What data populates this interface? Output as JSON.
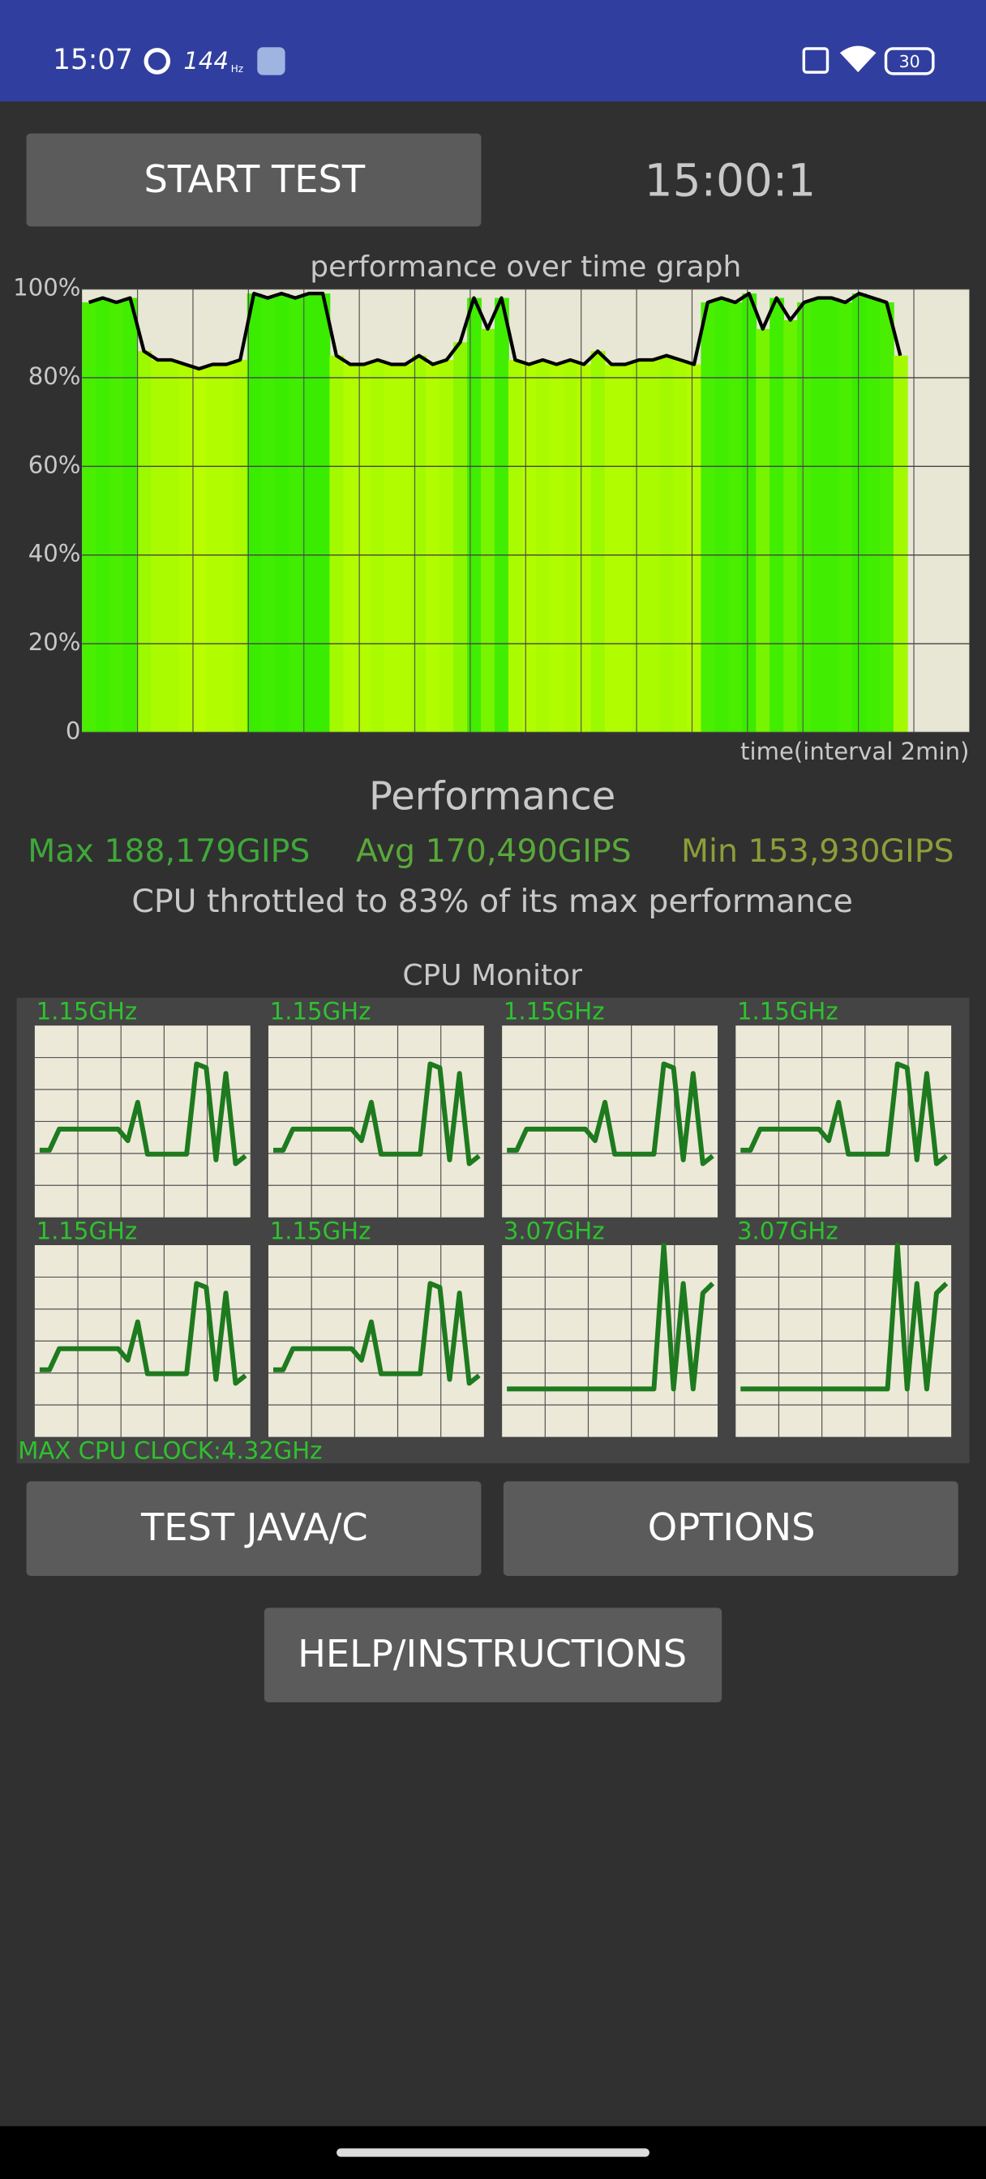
{
  "status_bar": {
    "time": "15:07",
    "refresh_rate": "144",
    "refresh_unit": "Hz",
    "battery": "30"
  },
  "buttons": {
    "start": "START TEST",
    "test_java": "TEST JAVA/C",
    "options": "OPTIONS",
    "help": "HELP/INSTRUCTIONS"
  },
  "timer": "15:00:1",
  "performance": {
    "heading": "Performance",
    "max": "Max 188,179GIPS",
    "avg": "Avg 170,490GIPS",
    "min": "Min 153,930GIPS",
    "summary": "CPU throttled to 83% of its max performance"
  },
  "cpu_monitor": {
    "title": "CPU Monitor",
    "max_clock": "MAX CPU CLOCK:4.32GHz"
  },
  "chart_data": [
    {
      "type": "line",
      "title": "performance over time graph",
      "x_label": "time(interval 2min)",
      "color": "#000000",
      "grid": true,
      "ylim": [
        0,
        100
      ],
      "yticks": [
        0,
        {
          "value": 20,
          "label": "20%"
        },
        {
          "value": 40,
          "label": "40%"
        },
        {
          "value": 60,
          "label": "60%"
        },
        {
          "value": 80,
          "label": "80%"
        },
        {
          "value": 100,
          "label": "100%"
        }
      ],
      "values": [
        97,
        98,
        97,
        98,
        86,
        84,
        84,
        83,
        82,
        83,
        83,
        84,
        99,
        98,
        99,
        98,
        99,
        99,
        85,
        83,
        83,
        84,
        83,
        83,
        85,
        83,
        84,
        88,
        98,
        91,
        98,
        84,
        83,
        84,
        83,
        84,
        83,
        86,
        83,
        83,
        84,
        84,
        85,
        84,
        83,
        97,
        98,
        97,
        99,
        91,
        98,
        93,
        97,
        98,
        98,
        97,
        99,
        98,
        97,
        85
      ]
    },
    {
      "type": "line",
      "title": "1.15GHz",
      "color": "#1e7a1e",
      "ylim": [
        0,
        100
      ],
      "values": [
        35,
        35,
        46,
        46,
        46,
        46,
        46,
        46,
        46,
        40,
        60,
        33,
        33,
        33,
        33,
        33,
        80,
        78,
        30,
        75,
        28,
        32
      ]
    },
    {
      "type": "line",
      "title": "1.15GHz",
      "color": "#1e7a1e",
      "ylim": [
        0,
        100
      ],
      "values": [
        35,
        35,
        46,
        46,
        46,
        46,
        46,
        46,
        46,
        40,
        60,
        33,
        33,
        33,
        33,
        33,
        80,
        78,
        30,
        75,
        28,
        32
      ]
    },
    {
      "type": "line",
      "title": "1.15GHz",
      "color": "#1e7a1e",
      "ylim": [
        0,
        100
      ],
      "values": [
        35,
        35,
        46,
        46,
        46,
        46,
        46,
        46,
        46,
        40,
        60,
        33,
        33,
        33,
        33,
        33,
        80,
        78,
        30,
        75,
        28,
        32
      ]
    },
    {
      "type": "line",
      "title": "1.15GHz",
      "color": "#1e7a1e",
      "ylim": [
        0,
        100
      ],
      "values": [
        35,
        35,
        46,
        46,
        46,
        46,
        46,
        46,
        46,
        40,
        60,
        33,
        33,
        33,
        33,
        33,
        80,
        78,
        30,
        75,
        28,
        32
      ]
    },
    {
      "type": "line",
      "title": "1.15GHz",
      "color": "#1e7a1e",
      "ylim": [
        0,
        100
      ],
      "values": [
        35,
        35,
        46,
        46,
        46,
        46,
        46,
        46,
        46,
        40,
        60,
        33,
        33,
        33,
        33,
        33,
        80,
        78,
        30,
        75,
        28,
        32
      ]
    },
    {
      "type": "line",
      "title": "1.15GHz",
      "color": "#1e7a1e",
      "ylim": [
        0,
        100
      ],
      "values": [
        35,
        35,
        46,
        46,
        46,
        46,
        46,
        46,
        46,
        40,
        60,
        33,
        33,
        33,
        33,
        33,
        80,
        78,
        30,
        75,
        28,
        32
      ]
    },
    {
      "type": "line",
      "title": "3.07GHz",
      "color": "#1e7a1e",
      "ylim": [
        0,
        100
      ],
      "values": [
        25,
        25,
        25,
        25,
        25,
        25,
        25,
        25,
        25,
        25,
        25,
        25,
        25,
        25,
        25,
        25,
        100,
        25,
        80,
        25,
        75,
        80
      ]
    },
    {
      "type": "line",
      "title": "3.07GHz",
      "color": "#1e7a1e",
      "ylim": [
        0,
        100
      ],
      "values": [
        25,
        25,
        25,
        25,
        25,
        25,
        25,
        25,
        25,
        25,
        25,
        25,
        25,
        25,
        25,
        25,
        100,
        25,
        80,
        25,
        75,
        80
      ]
    }
  ]
}
